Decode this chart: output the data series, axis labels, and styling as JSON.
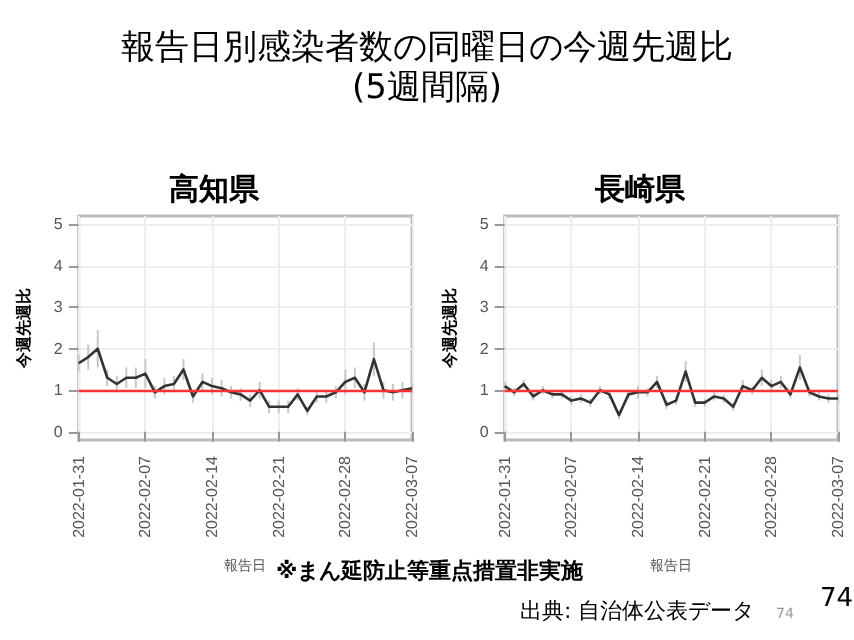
{
  "chart_data": [
    {
      "type": "line",
      "title": "高知県",
      "ylabel": "今週先週比",
      "xlabel": "報告日",
      "annotations": [
        "報告日別感染者数の同曜日の今週先週比\n(5週間隔)"
      ],
      "x": [
        "2022-01-31",
        "2022-02-01",
        "2022-02-02",
        "2022-02-03",
        "2022-02-04",
        "2022-02-05",
        "2022-02-06",
        "2022-02-07",
        "2022-02-08",
        "2022-02-09",
        "2022-02-10",
        "2022-02-11",
        "2022-02-12",
        "2022-02-13",
        "2022-02-14",
        "2022-02-15",
        "2022-02-16",
        "2022-02-17",
        "2022-02-18",
        "2022-02-19",
        "2022-02-20",
        "2022-02-21",
        "2022-02-22",
        "2022-02-23",
        "2022-02-24",
        "2022-02-25",
        "2022-02-26",
        "2022-02-27",
        "2022-02-28",
        "2022-03-01",
        "2022-03-02",
        "2022-03-03",
        "2022-03-04",
        "2022-03-05",
        "2022-03-06",
        "2022-03-07"
      ],
      "series": [
        {
          "color": "#333333",
          "values": [
            1.65,
            1.8,
            2.0,
            1.3,
            1.15,
            1.3,
            1.3,
            1.4,
            0.95,
            1.1,
            1.15,
            1.5,
            0.85,
            1.2,
            1.1,
            1.05,
            0.95,
            0.9,
            0.75,
            1.0,
            0.6,
            0.6,
            0.6,
            0.9,
            0.5,
            0.85,
            0.85,
            0.95,
            1.2,
            1.3,
            0.95,
            1.75,
            1.0,
            0.95,
            1.0,
            1.05
          ],
          "errors": [
            0.2,
            0.3,
            0.45,
            0.2,
            0.2,
            0.25,
            0.25,
            0.35,
            0.15,
            0.2,
            0.2,
            0.25,
            0.15,
            0.2,
            0.2,
            0.2,
            0.15,
            0.15,
            0.15,
            0.2,
            0.15,
            0.15,
            0.15,
            0.15,
            0.1,
            0.15,
            0.15,
            0.15,
            0.3,
            0.25,
            0.2,
            0.4,
            0.2,
            0.2,
            0.2,
            0.15
          ]
        }
      ],
      "xlim": [
        "2022-01-31",
        "2022-03-07"
      ],
      "xticks": [
        "2022-01-31",
        "2022-02-07",
        "2022-02-14",
        "2022-02-21",
        "2022-02-28",
        "2022-03-07"
      ],
      "ylim": [
        -0.2,
        5.2
      ],
      "yticks": [
        0,
        1,
        2,
        3,
        4,
        5
      ],
      "grid": true,
      "marker": "none",
      "line_style": "solid",
      "ref_lines": [
        {
          "axis": "y",
          "value": 1,
          "color": "#ff3333"
        }
      ]
    },
    {
      "type": "line",
      "title": "長崎県",
      "ylabel": "今週先週比",
      "xlabel": "報告日",
      "annotations": [
        "※まん延防止等重点措置非実施",
        "出典: 自治体公表データ",
        "74",
        "74"
      ],
      "x": [
        "2022-01-31",
        "2022-02-01",
        "2022-02-02",
        "2022-02-03",
        "2022-02-04",
        "2022-02-05",
        "2022-02-06",
        "2022-02-07",
        "2022-02-08",
        "2022-02-09",
        "2022-02-10",
        "2022-02-11",
        "2022-02-12",
        "2022-02-13",
        "2022-02-14",
        "2022-02-15",
        "2022-02-16",
        "2022-02-17",
        "2022-02-18",
        "2022-02-19",
        "2022-02-20",
        "2022-02-21",
        "2022-02-22",
        "2022-02-23",
        "2022-02-24",
        "2022-02-25",
        "2022-02-26",
        "2022-02-27",
        "2022-02-28",
        "2022-03-01",
        "2022-03-02",
        "2022-03-03",
        "2022-03-04",
        "2022-03-05",
        "2022-03-06",
        "2022-03-07"
      ],
      "series": [
        {
          "color": "#333333",
          "values": [
            1.1,
            0.95,
            1.15,
            0.85,
            1.0,
            0.9,
            0.9,
            0.75,
            0.8,
            0.7,
            1.0,
            0.9,
            0.4,
            0.9,
            0.95,
            0.95,
            1.2,
            0.65,
            0.75,
            1.45,
            0.7,
            0.7,
            0.85,
            0.8,
            0.6,
            1.1,
            1.0,
            1.3,
            1.1,
            1.2,
            0.9,
            1.55,
            0.95,
            0.85,
            0.8,
            0.8
          ],
          "errors": [
            0.1,
            0.1,
            0.1,
            0.1,
            0.1,
            0.1,
            0.1,
            0.1,
            0.1,
            0.1,
            0.1,
            0.1,
            0.1,
            0.1,
            0.15,
            0.1,
            0.15,
            0.1,
            0.1,
            0.25,
            0.1,
            0.1,
            0.1,
            0.1,
            0.1,
            0.15,
            0.1,
            0.2,
            0.15,
            0.15,
            0.1,
            0.3,
            0.1,
            0.1,
            0.1,
            0.1
          ]
        }
      ],
      "xlim": [
        "2022-01-31",
        "2022-03-07"
      ],
      "xticks": [
        "2022-01-31",
        "2022-02-07",
        "2022-02-14",
        "2022-02-21",
        "2022-02-28",
        "2022-03-07"
      ],
      "ylim": [
        -0.2,
        5.2
      ],
      "yticks": [
        0,
        1,
        2,
        3,
        4,
        5
      ],
      "grid": true,
      "marker": "none",
      "line_style": "solid",
      "ref_lines": [
        {
          "axis": "y",
          "value": 1,
          "color": "#ff3333"
        }
      ]
    }
  ]
}
